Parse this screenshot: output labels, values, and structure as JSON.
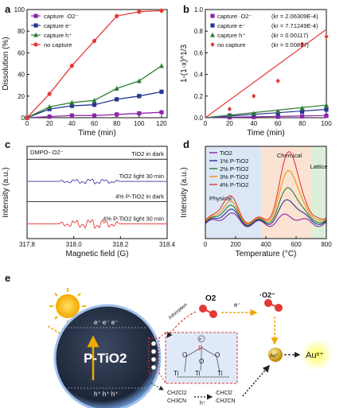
{
  "panels": {
    "a": "a",
    "b": "b",
    "c": "c",
    "d": "d",
    "e": "e"
  },
  "chart_data": [
    {
      "id": "a",
      "type": "line",
      "xlabel": "Time (min)",
      "ylabel": "Dissolution (%)",
      "xlim": [
        0,
        125
      ],
      "ylim": [
        0,
        100
      ],
      "xticks": [
        0,
        20,
        40,
        60,
        80,
        100,
        120
      ],
      "yticks": [
        0,
        20,
        40,
        60,
        80,
        100
      ],
      "legend_position": "top-left",
      "grid": false,
      "series": [
        {
          "name": "capture ·O2⁻",
          "color": "#8e24aa",
          "marker": "square",
          "x": [
            0,
            20,
            40,
            60,
            80,
            100,
            120
          ],
          "y": [
            0,
            1,
            2,
            2,
            3,
            4,
            5
          ]
        },
        {
          "name": "capture e⁻",
          "color": "#283593",
          "marker": "square",
          "x": [
            0,
            20,
            40,
            60,
            80,
            100,
            120
          ],
          "y": [
            0,
            8,
            11,
            12,
            17,
            20,
            24
          ]
        },
        {
          "name": "capture h⁺",
          "color": "#2e7d32",
          "marker": "triangle",
          "x": [
            0,
            20,
            40,
            60,
            80,
            100,
            120
          ],
          "y": [
            0,
            10,
            14,
            16,
            27,
            34,
            48
          ]
        },
        {
          "name": "no capture",
          "color": "#e53935",
          "marker": "circle",
          "x": [
            0,
            20,
            40,
            60,
            80,
            100,
            120
          ],
          "y": [
            0,
            22,
            48,
            71,
            94,
            98,
            99
          ]
        }
      ]
    },
    {
      "id": "b",
      "type": "scatter",
      "xlabel": "Time (min)",
      "ylabel": "1-(1-x)^1/3",
      "xlim": [
        0,
        100
      ],
      "ylim": [
        0,
        1.0
      ],
      "xticks": [
        0,
        20,
        40,
        60,
        80,
        100
      ],
      "yticks": [
        0.0,
        0.2,
        0.4,
        0.6,
        0.8,
        1.0
      ],
      "legend_position": "top-left",
      "grid": false,
      "series": [
        {
          "name": "capture ·O2⁻",
          "k": "(kr = 2.06309E-4)",
          "color": "#8e24aa",
          "marker": "square",
          "x": [
            20,
            40,
            60,
            80,
            100
          ],
          "y": [
            0.003,
            0.006,
            0.008,
            0.012,
            0.018
          ],
          "fit": [
            0,
            0.0206
          ]
        },
        {
          "name": "capture e⁻",
          "k": "(kr = 7.71249E-4)",
          "color": "#283593",
          "marker": "square",
          "x": [
            20,
            40,
            60,
            80,
            100
          ],
          "y": [
            0.02,
            0.03,
            0.04,
            0.055,
            0.075
          ],
          "fit": [
            0,
            0.077
          ]
        },
        {
          "name": "capture h⁺",
          "k": "(kr = 0.00117)",
          "color": "#2e7d32",
          "marker": "triangle",
          "x": [
            20,
            40,
            60,
            80,
            100
          ],
          "y": [
            0.025,
            0.04,
            0.06,
            0.09,
            0.115
          ],
          "fit": [
            0,
            0.117
          ]
        },
        {
          "name": "no capture",
          "k": "(kr = 0.00817)",
          "color": "#e53935",
          "marker": "diamond",
          "x": [
            20,
            40,
            60,
            80,
            100
          ],
          "y": [
            0.08,
            0.2,
            0.34,
            0.68,
            0.75
          ],
          "fit": [
            0,
            0.817
          ]
        }
      ]
    },
    {
      "id": "c",
      "type": "line",
      "xlabel": "Magnetic field (G)",
      "ylabel": "Intensity (a.u.)",
      "xlim": [
        317.8,
        318.4
      ],
      "xticks": [
        317.8,
        318.0,
        318.2,
        318.4
      ],
      "tick_labels": [
        "317.8",
        "318.0",
        "318.2",
        "318.4"
      ],
      "annotation": "DMPO-·O2⁻",
      "traces": [
        {
          "name": "TiO2 in dark",
          "color": "#222222",
          "offset": 0.86,
          "amp": 0.0
        },
        {
          "name": "TiO2 light 30 min",
          "color": "#3f3fa0",
          "offset": 0.62,
          "amp": 0.55
        },
        {
          "name": "4% P-TiO2 in dark",
          "color": "#222222",
          "offset": 0.4,
          "amp": 0.0
        },
        {
          "name": "4% P-TiO2 light 30 min",
          "color": "#e53935",
          "offset": 0.16,
          "amp": 1.0
        }
      ]
    },
    {
      "id": "d",
      "type": "line",
      "xlabel": "Temperature (°C)",
      "ylabel": "Intensity (a.u.)",
      "xlim": [
        0,
        800
      ],
      "xticks": [
        0,
        200,
        400,
        600,
        800
      ],
      "regions": [
        {
          "label": "Physical",
          "from": 0,
          "to": 370,
          "color": "#dbe7f5"
        },
        {
          "label": "Chemical",
          "from": 370,
          "to": 700,
          "color": "#fbe3d3"
        },
        {
          "label": "Lattice",
          "from": 700,
          "to": 800,
          "color": "#dcefd9"
        }
      ],
      "series": [
        {
          "name": "TiO2",
          "color": "#8e24aa",
          "base": 0.12,
          "p1": 0.12,
          "p2": 0.1
        },
        {
          "name": "1% P-TiO2",
          "color": "#283593",
          "base": 0.13,
          "p1": 0.16,
          "p2": 0.28
        },
        {
          "name": "2% P-TiO2",
          "color": "#2e7d32",
          "base": 0.14,
          "p1": 0.2,
          "p2": 0.42
        },
        {
          "name": "3% P-TiO2",
          "color": "#f09400",
          "base": 0.15,
          "p1": 0.24,
          "p2": 0.62
        },
        {
          "name": "4% P-TiO2",
          "color": "#e53935",
          "base": 0.16,
          "p1": 0.3,
          "p2": 0.84
        }
      ]
    }
  ],
  "scheme": {
    "catalyst": "P-TiO2",
    "electrons": "e⁻ e⁻ e⁻",
    "holes": "h⁺ h⁺ h⁺",
    "o2": "O2",
    "superoxide": "·O2⁻",
    "adsorption": "Adsorption",
    "e_label": "e⁻",
    "au0": "Au⁰",
    "aux": "Auˣ⁺",
    "solvent1": "CH2Cl2",
    "solvent2": "CH3CN",
    "h_label": "h⁺",
    "radical1": "·CHCl2",
    "radical2": "·CH2CN",
    "struct_o": "O",
    "struct_p": "P",
    "struct_ti": "Ti",
    "struct_e": "e⁻"
  }
}
